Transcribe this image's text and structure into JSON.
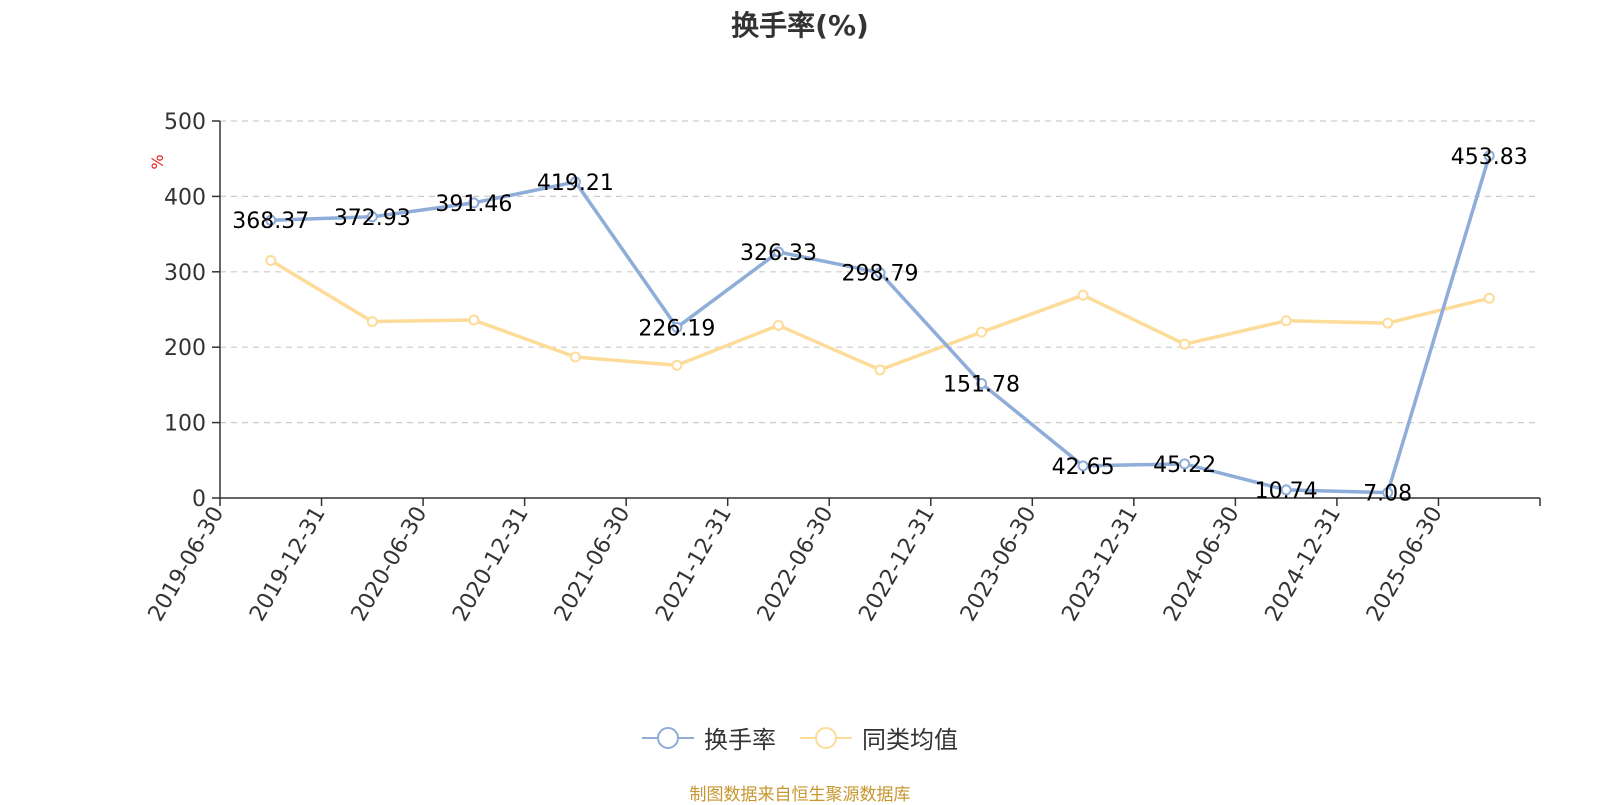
{
  "title": "换手率(%)",
  "source": "制图数据来自恒生聚源数据库",
  "chart_data": {
    "type": "line",
    "title": "换手率(%)",
    "ylabel": "%",
    "ylim": [
      0,
      500
    ],
    "yticks": [
      0,
      100,
      200,
      300,
      400,
      500
    ],
    "grid": true,
    "legend_position": "bottom",
    "categories": [
      "2019-06-30",
      "2019-12-31",
      "2020-06-30",
      "2020-12-31",
      "2021-06-30",
      "2021-12-31",
      "2022-06-30",
      "2022-12-31",
      "2023-06-30",
      "2023-12-31",
      "2024-06-30",
      "2024-12-31",
      "2025-06-30"
    ],
    "series": [
      {
        "name": "换手率",
        "color": "#8eadd8",
        "show_labels": true,
        "values": [
          368.37,
          372.93,
          391.46,
          419.21,
          226.19,
          326.33,
          298.79,
          151.78,
          42.65,
          45.22,
          10.74,
          7.08,
          453.83
        ]
      },
      {
        "name": "同类均值",
        "color": "#fddc9a",
        "show_labels": false,
        "values": [
          315,
          234,
          236,
          187,
          176,
          229,
          170,
          220,
          269,
          204,
          235,
          232,
          265
        ]
      }
    ]
  }
}
